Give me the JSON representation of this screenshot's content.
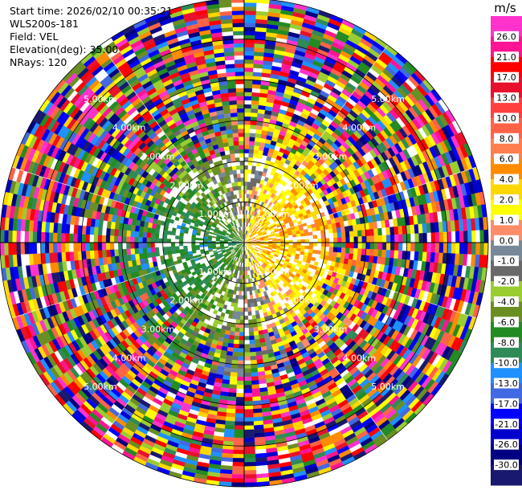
{
  "info": {
    "start_time": "Start time: 2026/02/10 00:35:21",
    "station": "WLS200s-181",
    "field": "Field: VEL",
    "elevation": "Elevation(deg): 35.00",
    "nrays": "NRays: 120"
  },
  "colorbar": {
    "unit": "m/s",
    "ticks": [
      "26.0",
      "21.0",
      "17.0",
      "13.0",
      "10.0",
      "8.0",
      "6.0",
      "4.0",
      "2.0",
      "1.0",
      "0.0",
      "-1.0",
      "-2.0",
      "-4.0",
      "-6.0",
      "-8.0",
      "-10.0",
      "-13.0",
      "-17.0",
      "-21.0",
      "-26.0",
      "-30.0"
    ],
    "colors": [
      "#ff33cc",
      "#ff1493",
      "#ff0000",
      "#e8112d",
      "#ff4040",
      "#ff6347",
      "#ff7f50",
      "#ff8c00",
      "#ffd700",
      "#ffff00",
      "#ff8c69",
      "#778899",
      "#696969",
      "#9acd32",
      "#6b8e23",
      "#228b22",
      "#2e8b57",
      "#1e90ff",
      "#4169e1",
      "#0000ff",
      "#0000cd",
      "#000080",
      "#191970"
    ]
  },
  "chart_data": {
    "type": "heatmap",
    "projection": "polar PPI",
    "field": "VEL",
    "units": "m/s",
    "nrays": 120,
    "range_rings_km": [
      1,
      2,
      3,
      4,
      5,
      6
    ],
    "range_labels": [
      "1.00km",
      "2.00km",
      "3.00km",
      "4.00km",
      "5.00km",
      "6.00km"
    ],
    "clim": [
      -30,
      30
    ],
    "max_range_km": 6.0,
    "range_gate_km": 0.1
  }
}
